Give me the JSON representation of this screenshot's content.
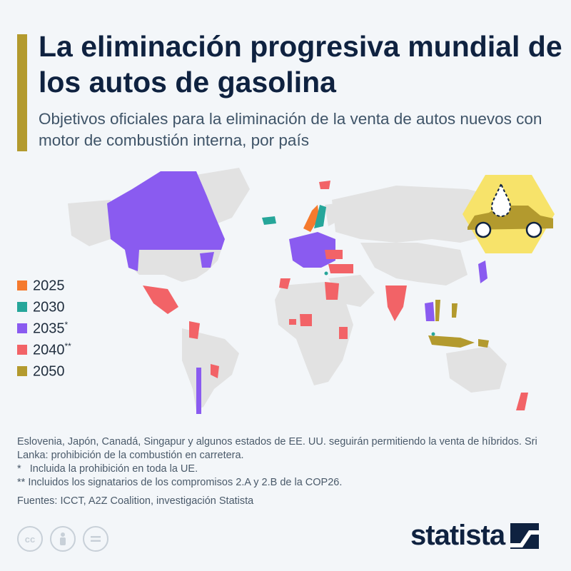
{
  "header": {
    "title": "La eliminación progresiva mundial de los autos de gasolina",
    "subtitle": "Objetivos oficiales para la eliminación de la venta de autos nuevos con motor de combustión interna, por país"
  },
  "legend": [
    {
      "label": "2025",
      "suffix": "",
      "color": "#f57a2e"
    },
    {
      "label": "2030",
      "suffix": "",
      "color": "#26a69a"
    },
    {
      "label": "2035",
      "suffix": "*",
      "color": "#8a5bf0"
    },
    {
      "label": "2040",
      "suffix": "**",
      "color": "#f26367"
    },
    {
      "label": "2050",
      "suffix": "",
      "color": "#b39a2e"
    }
  ],
  "map": {
    "base_color": "#e2e2e2",
    "regions": {
      "2025": [
        "Noruega"
      ],
      "2030": [
        "Suecia",
        "Islandia",
        "Israel",
        "Singapur"
      ],
      "2035": [
        "Canadá",
        "algunos estados de EE. UU.",
        "Chile",
        "UE",
        "Japón",
        "Tailandia",
        "Camboya"
      ],
      "2040": [
        "México",
        "Colombia",
        "Paraguay",
        "Uruguay",
        "Egipto",
        "India",
        "Nigeria",
        "Kenia",
        "Turquía",
        "Nueva Zelanda"
      ],
      "2050": [
        "Indonesia",
        "Vietnam",
        "Filipinas",
        "Papúa Nueva Guinea"
      ]
    }
  },
  "notes": {
    "note1": "Eslovenia, Japón, Canadá, Singapur y algunos estados de EE. UU. seguirán permitiendo la venta de híbridos. Sri Lanka: prohibición de la combustión en carretera.",
    "note2": "*   Incluida la prohibición en toda la UE.",
    "note3": "** Incluidos los signatarios de los compromisos 2.A y 2.B de la COP26.",
    "sources": "Fuentes: ICCT, A2Z Coalition, investigación Statista"
  },
  "footer": {
    "brand": "statista",
    "license_icons": [
      "cc-icon",
      "by-person-icon",
      "nd-equals-icon"
    ]
  },
  "badge_icon": "car-fuel-drop-icon"
}
